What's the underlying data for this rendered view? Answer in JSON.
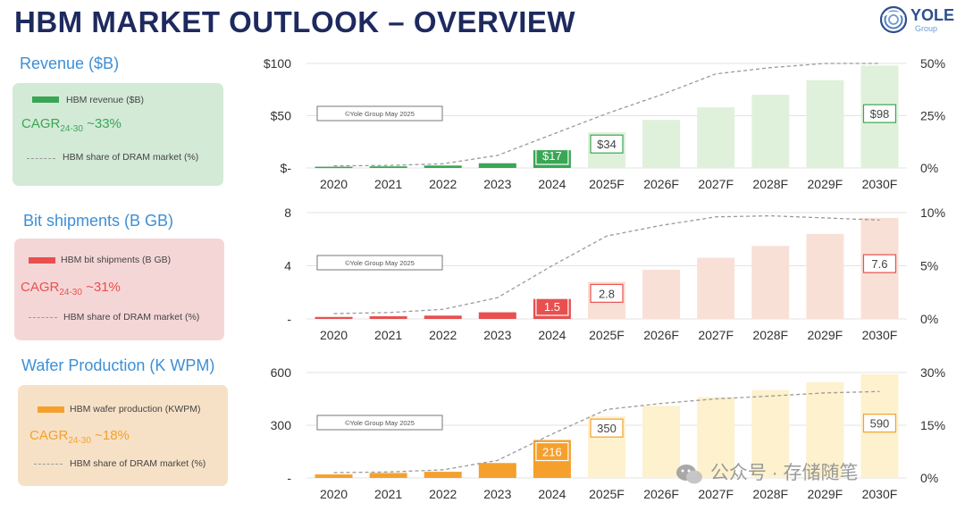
{
  "header": {
    "title": "HBM MARKET OUTLOOK – OVERVIEW",
    "logo_text": "YOLE",
    "logo_sub": "Group"
  },
  "watermark": "公众号 · 存储随笔",
  "sections": [
    {
      "title": "Revenue ($B)",
      "legend_bar": "HBM revenue ($B)",
      "cagr_prefix": "CAGR",
      "cagr_sub": "24-30",
      "cagr_value": "~33%",
      "legend_line": "HBM share of DRAM market (%)",
      "panel_bg": "#d3ead7",
      "accent": "#3aa655",
      "title_color": "#3d8fd6"
    },
    {
      "title": "Bit shipments (B GB)",
      "legend_bar": "HBM bit shipments (B GB)",
      "cagr_prefix": "CAGR",
      "cagr_sub": "24-30",
      "cagr_value": "~31%",
      "legend_line": "HBM share of DRAM market (%)",
      "panel_bg": "#f5d6d6",
      "accent": "#e85050",
      "title_color": "#3d8fd6"
    },
    {
      "title": "Wafer Production (K WPM)",
      "legend_bar": "HBM wafer production (KWPM)",
      "cagr_prefix": "CAGR",
      "cagr_sub": "24-30",
      "cagr_value": "~18%",
      "legend_line": "HBM share of DRAM market (%)",
      "panel_bg": "#f7e1c6",
      "accent": "#f5a02c",
      "title_color": "#3d8fd6"
    }
  ],
  "chart_data": [
    {
      "type": "bar",
      "title": "Revenue ($B)",
      "categories": [
        "2020",
        "2021",
        "2022",
        "2023",
        "2024",
        "2025F",
        "2026F",
        "2027F",
        "2028F",
        "2029F",
        "2030F"
      ],
      "values": [
        1.2,
        1.5,
        2.3,
        4.5,
        17,
        34,
        46,
        58,
        70,
        84,
        98
      ],
      "forecast_from_index": 5,
      "data_labels": [
        {
          "index": 4,
          "text": "$17"
        },
        {
          "index": 5,
          "text": "$34"
        },
        {
          "index": 10,
          "text": "$98"
        }
      ],
      "ylim": [
        0,
        100
      ],
      "y_ticks": [
        {
          "v": 0,
          "label": "$-"
        },
        {
          "v": 50,
          "label": "$50"
        },
        {
          "v": 100,
          "label": "$100"
        }
      ],
      "share_series": {
        "name": "HBM share of DRAM market (%)",
        "values": [
          1,
          1.2,
          2,
          6,
          16,
          26,
          35,
          45,
          48,
          50,
          50
        ]
      },
      "y2lim": [
        0,
        50
      ],
      "y2_ticks": [
        {
          "v": 0,
          "label": "0%"
        },
        {
          "v": 25,
          "label": "25%"
        },
        {
          "v": 50,
          "label": "50%"
        }
      ],
      "copyright": "©Yole Group May 2025",
      "color": "#3aa655",
      "color_light": "#e0f1db"
    },
    {
      "type": "bar",
      "title": "Bit shipments (B GB)",
      "categories": [
        "2020",
        "2021",
        "2022",
        "2023",
        "2024",
        "2025F",
        "2026F",
        "2027F",
        "2028F",
        "2029F",
        "2030F"
      ],
      "values": [
        0.15,
        0.2,
        0.25,
        0.5,
        1.5,
        2.8,
        3.7,
        4.6,
        5.5,
        6.4,
        7.6
      ],
      "forecast_from_index": 5,
      "data_labels": [
        {
          "index": 4,
          "text": "1.5"
        },
        {
          "index": 5,
          "text": "2.8"
        },
        {
          "index": 10,
          "text": "7.6"
        }
      ],
      "ylim": [
        0,
        8
      ],
      "y_ticks": [
        {
          "v": 0,
          "label": "-"
        },
        {
          "v": 4,
          "label": "4"
        },
        {
          "v": 8,
          "label": "8"
        }
      ],
      "share_series": {
        "name": "HBM share of DRAM market (%)",
        "values": [
          0.5,
          0.6,
          0.9,
          2,
          5,
          7.8,
          8.8,
          9.6,
          9.7,
          9.5,
          9.3
        ]
      },
      "y2lim": [
        0,
        10
      ],
      "y2_ticks": [
        {
          "v": 0,
          "label": "0%"
        },
        {
          "v": 5,
          "label": "5%"
        },
        {
          "v": 10,
          "label": "10%"
        }
      ],
      "copyright": "©Yole Group May 2025",
      "color": "#e85050",
      "color_light": "#f9e0d6"
    },
    {
      "type": "bar",
      "title": "Wafer Production (K WPM)",
      "categories": [
        "2020",
        "2021",
        "2022",
        "2023",
        "2024",
        "2025F",
        "2026F",
        "2027F",
        "2028F",
        "2029F",
        "2030F"
      ],
      "values": [
        20,
        28,
        35,
        85,
        216,
        350,
        410,
        460,
        500,
        545,
        590
      ],
      "forecast_from_index": 5,
      "data_labels": [
        {
          "index": 4,
          "text": "216"
        },
        {
          "index": 5,
          "text": "350"
        },
        {
          "index": 10,
          "text": "590"
        }
      ],
      "ylim": [
        0,
        600
      ],
      "y_ticks": [
        {
          "v": 0,
          "label": "-"
        },
        {
          "v": 300,
          "label": "300"
        },
        {
          "v": 600,
          "label": "600"
        }
      ],
      "share_series": {
        "name": "HBM share of DRAM market (%)",
        "values": [
          1.5,
          1.7,
          2.3,
          5,
          12.5,
          19.5,
          21.2,
          22.5,
          23.3,
          24.2,
          24.6
        ]
      },
      "y2lim": [
        0,
        30
      ],
      "y2_ticks": [
        {
          "v": 0,
          "label": "0%"
        },
        {
          "v": 15,
          "label": "15%"
        },
        {
          "v": 30,
          "label": "30%"
        }
      ],
      "copyright": "©Yole Group May 2025",
      "color": "#f5a02c",
      "color_light": "#fdf1ce"
    }
  ]
}
